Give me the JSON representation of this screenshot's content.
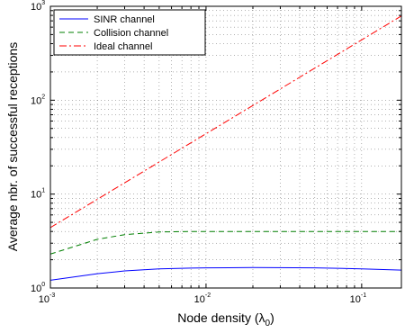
{
  "chart_data": {
    "type": "line",
    "xscale": "log",
    "yscale": "log",
    "xlim": [
      0.001,
      0.18
    ],
    "ylim": [
      1,
      1000
    ],
    "xlabel": "Node density (λ",
    "xlabel_sub": "0",
    "xlabel_suffix": ")",
    "ylabel": "Average nbr. of successful receptions",
    "grid": true,
    "legend_position": "top-left",
    "x_ticks": [
      {
        "value": 0.001,
        "base": "10",
        "exp": "-3"
      },
      {
        "value": 0.01,
        "base": "10",
        "exp": "-2"
      },
      {
        "value": 0.1,
        "base": "10",
        "exp": "-1"
      }
    ],
    "y_ticks": [
      {
        "value": 1,
        "base": "10",
        "exp": "0"
      },
      {
        "value": 10,
        "base": "10",
        "exp": "1"
      },
      {
        "value": 100,
        "base": "10",
        "exp": "2"
      },
      {
        "value": 1000,
        "base": "10",
        "exp": "3"
      }
    ],
    "series": [
      {
        "name": "SINR channel",
        "color": "#0000ff",
        "dash": "solid",
        "x": [
          0.001,
          0.002,
          0.003,
          0.005,
          0.008,
          0.01,
          0.02,
          0.05,
          0.1,
          0.18
        ],
        "y": [
          1.21,
          1.42,
          1.52,
          1.6,
          1.63,
          1.64,
          1.65,
          1.64,
          1.6,
          1.55
        ]
      },
      {
        "name": "Collision channel",
        "color": "#007f00",
        "dash": "dashed",
        "x": [
          0.001,
          0.002,
          0.003,
          0.005,
          0.008,
          0.01,
          0.02,
          0.05,
          0.1,
          0.18
        ],
        "y": [
          2.3,
          3.3,
          3.7,
          3.95,
          4.0,
          4.0,
          4.0,
          4.0,
          4.0,
          4.0
        ]
      },
      {
        "name": "Ideal channel",
        "color": "#ff0000",
        "dash": "dashdot",
        "x": [
          0.001,
          0.18
        ],
        "y": [
          4.4,
          790
        ]
      }
    ]
  }
}
